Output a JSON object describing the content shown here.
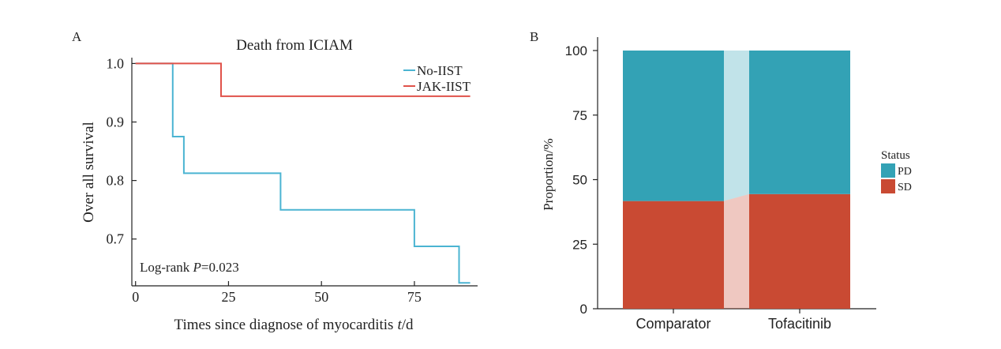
{
  "chart_data": [
    {
      "panel": "A",
      "type": "line",
      "title": "Death from ICIAM",
      "xlabel": "Times since diagnose of myocarditis",
      "xlabel_var": "t",
      "xlabel_unit": "/d",
      "ylabel": "Over all survival",
      "xlim": [
        -1,
        92
      ],
      "ylim": [
        0.62,
        1.01
      ],
      "xticks": [
        "0",
        "25",
        "50",
        "75"
      ],
      "yticks": [
        "0.7",
        "0.8",
        "0.9",
        "1.0"
      ],
      "legend_position": "top-right",
      "annotation": {
        "prefix": "Log-rank ",
        "var": "P",
        "suffix": "=0.023"
      },
      "series": [
        {
          "name": "No-IIST",
          "color": "#4bb4d2",
          "step_x": [
            0,
            10,
            10,
            13,
            13,
            39,
            39,
            75,
            75,
            87,
            87,
            90
          ],
          "step_y": [
            1.0,
            1.0,
            0.875,
            0.875,
            0.8125,
            0.8125,
            0.75,
            0.75,
            0.6875,
            0.6875,
            0.625,
            0.625
          ]
        },
        {
          "name": "JAK-IIST",
          "color": "#e0524a",
          "step_x": [
            0,
            23,
            23,
            90
          ],
          "step_y": [
            1.0,
            1.0,
            0.944,
            0.944
          ]
        }
      ]
    },
    {
      "panel": "B",
      "type": "bar",
      "stacked": true,
      "xlabel": "",
      "ylabel": "Proportion/%",
      "ylim": [
        0,
        100
      ],
      "yticks": [
        "0",
        "25",
        "50",
        "75",
        "100"
      ],
      "categories": [
        "Comparator",
        "Tofacitinib"
      ],
      "legend_title": "Status",
      "legend_position": "right",
      "series": [
        {
          "name": "SD",
          "color": "#c94a33",
          "values": [
            41.7,
            44.4
          ]
        },
        {
          "name": "PD",
          "color": "#33a2b5",
          "values": [
            58.3,
            55.6
          ]
        }
      ]
    }
  ]
}
